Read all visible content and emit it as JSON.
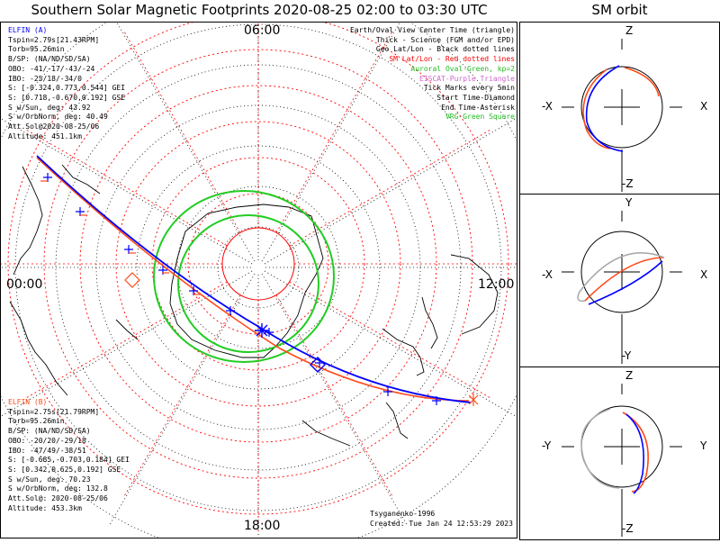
{
  "title": "Southern Solar Magnetic Footprints 2020-08-25 02:00 to 03:30 UTC",
  "sm_title": "SM orbit",
  "mlt_labels": {
    "top": "06:00",
    "left": "00:00",
    "right": "12:00",
    "bottom": "18:00"
  },
  "elfin_a": {
    "name": "ELFIN (A)",
    "color": "#0000ff",
    "lines": [
      "Tspin=2.79s[21.43RPM]",
      "Torb=95.26min",
      "B/SP: (NA/ND/SD/SA)",
      "OBO: -41/-17/-43/-24",
      "IBO: -25/18/-34/0",
      "S: [-0.324,0.773,0.544] GEI",
      "S: [0.718,-0.670,0.192] GSE",
      "S w/Sun, deg: 43.92",
      "S w/OrbNorm, deg: 40.49",
      "Att.Sol@2020-08-25/06",
      "Altitude: 451.1km"
    ]
  },
  "elfin_b": {
    "name": "ELFIN (B)",
    "color": "#ff4a1a",
    "lines": [
      "Tspin=2.75s[21.79RPM]",
      "Torb=95.26min",
      "B/SP: (NA/ND/SD/SA)",
      "OBO: -20/20/-29/18",
      "IBO: -47/49/-38/51",
      "S: [-0.685,-0.703,0.184] GEI",
      "S: [0.342,0.625,0.192] GSE",
      "S w/Sun, deg: 70.23",
      "S w/OrbNorm, deg: 132.8",
      "Att.Sol@: 2020-08-25/06",
      "Altitude: 453.3km"
    ]
  },
  "legend": [
    {
      "text": "Earth/Oval View Center Time (triangle)",
      "color": "#000000"
    },
    {
      "text": "Thick - Science (FGM and/or EPD)",
      "color": "#000000"
    },
    {
      "text": "Geo Lat/Lon - Black dotted lines",
      "color": "#000000"
    },
    {
      "text": "SM Lat/Lon - Red dotted lines",
      "color": "#ff0000"
    },
    {
      "text": "Auroral Oval-Green, kp=2",
      "color": "#22bb22"
    },
    {
      "text": "EISCAT-Purple Triangle",
      "color": "#cc66cc"
    },
    {
      "text": "Tick Marks every 5min",
      "color": "#000000"
    },
    {
      "text": "Start Time-Diamond",
      "color": "#000000"
    },
    {
      "text": "End Time-Asterisk",
      "color": "#000000"
    },
    {
      "text": "VRG-Green Square",
      "color": "#22bb22"
    }
  ],
  "credits": {
    "author": "Tsyganenko-1996",
    "created": "Created: Tue Jan 24 12:53:29 2023"
  },
  "sm_panels": [
    {
      "top": "Z",
      "bottom": "-Z",
      "left": "-X",
      "right": "X"
    },
    {
      "top": "Y",
      "bottom": "-Y",
      "left": "-X",
      "right": "X"
    },
    {
      "top": "Z",
      "bottom": "-Z",
      "left": "-Y",
      "right": "Y"
    }
  ],
  "colors": {
    "elfin_a": "#0000ff",
    "elfin_b": "#ff4a1a",
    "sm_grid": "#ff0000",
    "geo_grid": "#000000",
    "oval": "#22cc22",
    "orbit_back": "#aaaaaa"
  },
  "chart_data": {
    "type": "polar-map",
    "title": "Southern Solar Magnetic Footprints 2020-08-25 02:00 to 03:30 UTC",
    "projection": "SM polar, southern hemisphere",
    "mlt_axis": [
      "00:00",
      "06:00",
      "12:00",
      "18:00"
    ],
    "grid": {
      "sm": "red dotted",
      "geo": "black dotted"
    },
    "series": [
      {
        "name": "ELFIN (A)",
        "color": "#0000ff",
        "marks": {
          "start": "diamond",
          "end": "asterisk",
          "ticks": "every 5min"
        }
      },
      {
        "name": "ELFIN (B)",
        "color": "#ff4a1a",
        "marks": {
          "start": "diamond",
          "end": "asterisk",
          "ticks": "every 5min"
        }
      }
    ],
    "auroral_oval": {
      "kp": 2,
      "color": "#22cc22"
    }
  }
}
